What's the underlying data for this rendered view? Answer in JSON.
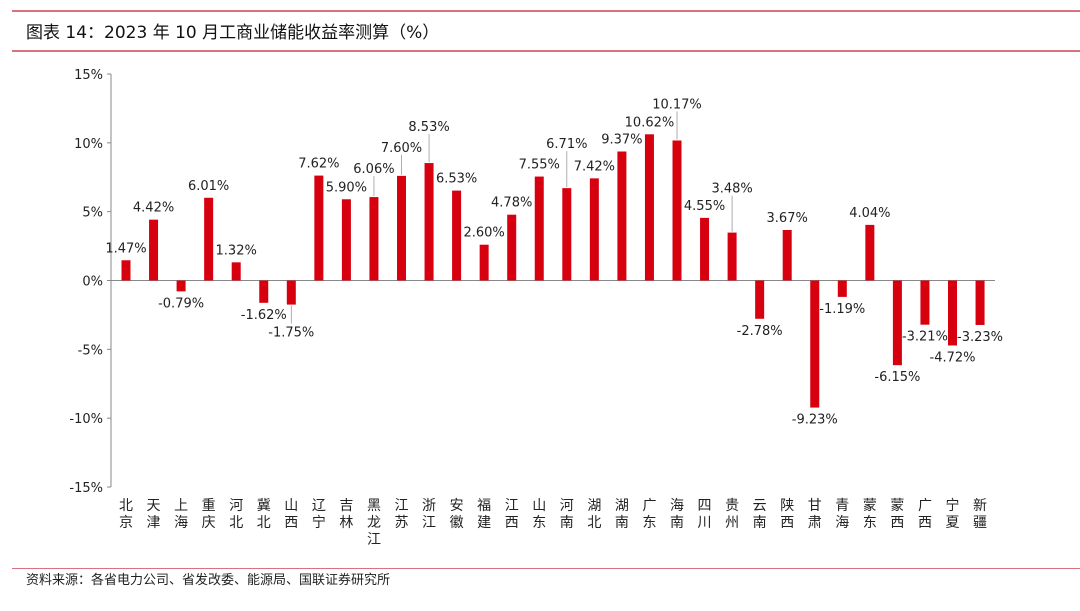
{
  "title": "图表 14：2023 年 10 月工商业储能收益率测算（%）",
  "source": "资料来源：各省电力公司、省发改委、能源局、国联证券研究所",
  "chart_data": {
    "type": "bar",
    "title": "",
    "xlabel": "",
    "ylabel": "",
    "ylim": [
      -15,
      15
    ],
    "yticks": [
      -15,
      -10,
      -5,
      0,
      5,
      10,
      15
    ],
    "ytick_labels": [
      "-15%",
      "-10%",
      "-5%",
      "0%",
      "5%",
      "10%",
      "15%"
    ],
    "grid": false,
    "bar_color": "#d7000f",
    "categories": [
      "北京",
      "天津",
      "上海",
      "重庆",
      "河北",
      "冀北",
      "山西",
      "辽宁",
      "吉林",
      "黑龙江",
      "江苏",
      "浙江",
      "安徽",
      "福建",
      "江西",
      "山东",
      "河南",
      "湖北",
      "湖南",
      "广东",
      "海南",
      "四川",
      "贵州",
      "云南",
      "陕西",
      "甘肃",
      "青海",
      "蒙东",
      "蒙西",
      "广西",
      "宁夏",
      "新疆"
    ],
    "values": [
      1.47,
      4.42,
      -0.79,
      6.01,
      1.32,
      -1.62,
      -1.75,
      7.62,
      5.9,
      6.06,
      7.6,
      8.53,
      6.53,
      2.6,
      4.78,
      7.55,
      6.71,
      7.42,
      9.37,
      10.62,
      10.17,
      4.55,
      3.48,
      -2.78,
      3.67,
      -9.23,
      -1.19,
      4.04,
      -6.15,
      -3.21,
      -4.72,
      -3.23
    ],
    "data_labels": [
      "1.47%",
      "4.42%",
      "-0.79%",
      "6.01%",
      "1.32%",
      "-1.62%",
      "-1.75%",
      "7.62%",
      "5.90%",
      "6.06%",
      "7.60%",
      "8.53%",
      "6.53%",
      "2.60%",
      "4.78%",
      "7.55%",
      "6.71%",
      "7.42%",
      "9.37%",
      "10.62%",
      "10.17%",
      "4.55%",
      "3.48%",
      "-2.78%",
      "3.67%",
      "-9.23%",
      "-1.19%",
      "4.04%",
      "-6.15%",
      "-3.21%",
      "-4.72%",
      "-3.23%"
    ]
  }
}
